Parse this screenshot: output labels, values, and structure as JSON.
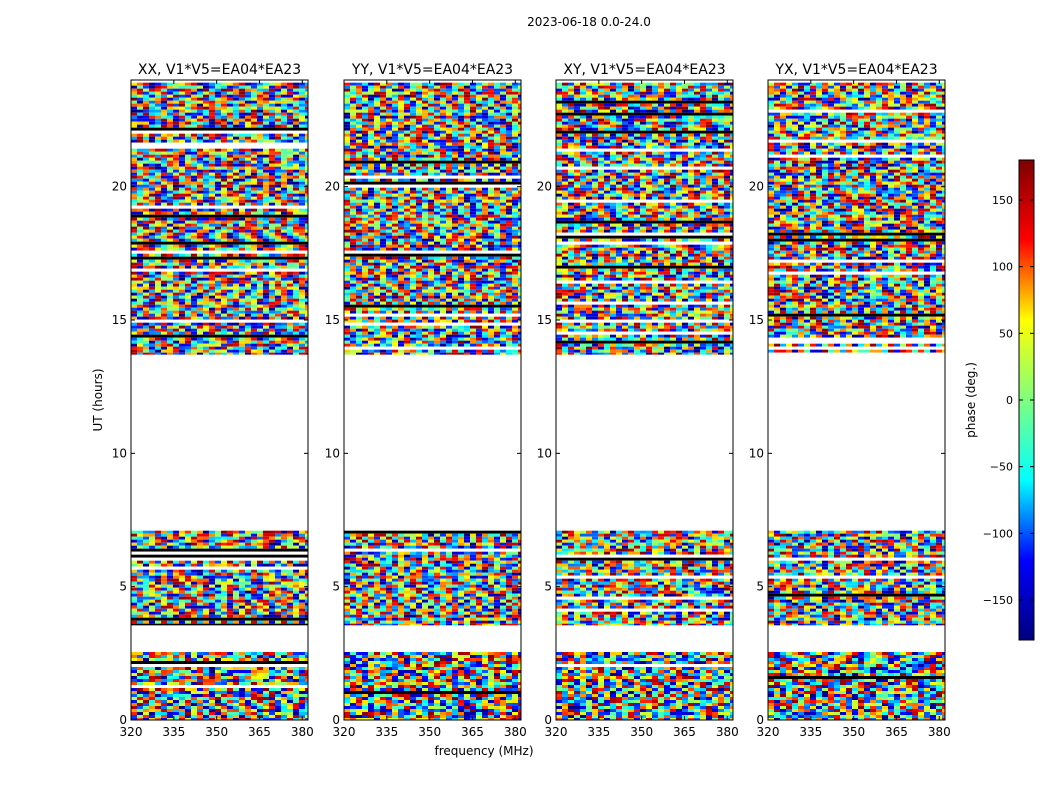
{
  "figure_title": "2023-06-18 0.0-24.0",
  "colorbar": {
    "label": "phase (deg.)",
    "range": [
      -180,
      180
    ],
    "ticks": [
      150,
      100,
      50,
      0,
      -50,
      -100,
      -150
    ],
    "tick_labels": [
      "150",
      "100",
      "50",
      "0",
      "−50",
      "−100",
      "−150"
    ],
    "colormap": "jet",
    "colors": [
      "#00007f",
      "#0000ff",
      "#00ffff",
      "#7fff7f",
      "#ffff00",
      "#ff0000",
      "#7f0000"
    ]
  },
  "chart_data": {
    "type": "heatmap",
    "xlabel": "frequency (MHz)",
    "ylabel": "UT (hours)",
    "xlim": [
      320,
      382
    ],
    "ylim": [
      0,
      24
    ],
    "x_ticks": [
      320,
      335,
      350,
      365,
      380
    ],
    "y_ticks": [
      0,
      5,
      10,
      15,
      20
    ],
    "value": "visibility phase (deg.)",
    "panels": [
      {
        "title": "XX, V1*V5=EA04*EA23",
        "polarization": "XX"
      },
      {
        "title": "YY, V1*V5=EA04*EA23",
        "polarization": "YY"
      },
      {
        "title": "XY, V1*V5=EA04*EA23",
        "polarization": "XY"
      },
      {
        "title": "YX, V1*V5=EA04*EA23",
        "polarization": "YX"
      }
    ],
    "data_time_ranges_hours": [
      [
        0.0,
        2.55
      ],
      [
        3.55,
        7.1
      ],
      [
        13.7,
        23.9
      ]
    ],
    "empty_time_ranges_hours": [
      [
        2.55,
        3.55
      ],
      [
        7.1,
        13.7
      ]
    ]
  }
}
